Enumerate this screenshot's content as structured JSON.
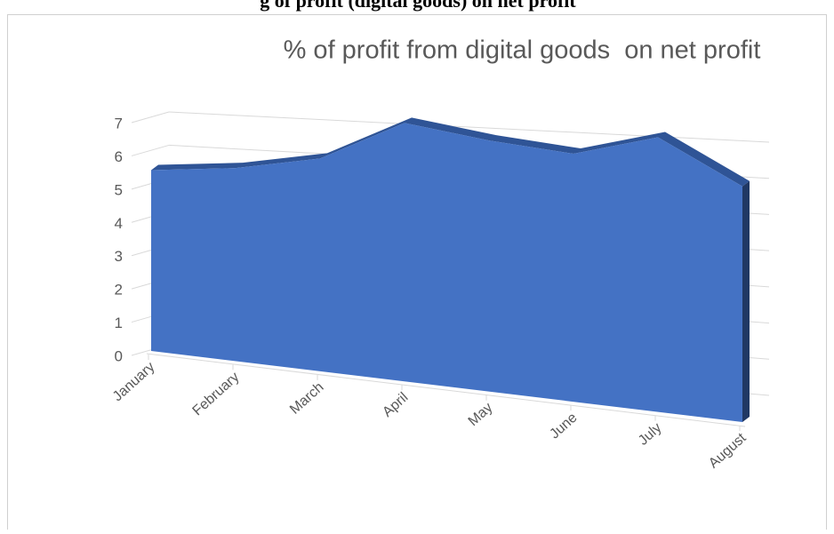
{
  "heading": "g of profit (digital goods) on net profit",
  "chart_data": {
    "type": "area3d",
    "title": "% of profit from digital goods  on net profit",
    "categories": [
      "January",
      "February",
      "March",
      "April",
      "May",
      "June",
      "July",
      "August"
    ],
    "values": [
      5.5,
      5.55,
      5.8,
      6.7,
      6.2,
      5.85,
      6.2,
      5.1
    ],
    "color": "#4472c4",
    "ylim": [
      0,
      7
    ],
    "yticks": [
      0,
      1,
      2,
      3,
      4,
      5,
      6,
      7
    ],
    "grid": true
  }
}
